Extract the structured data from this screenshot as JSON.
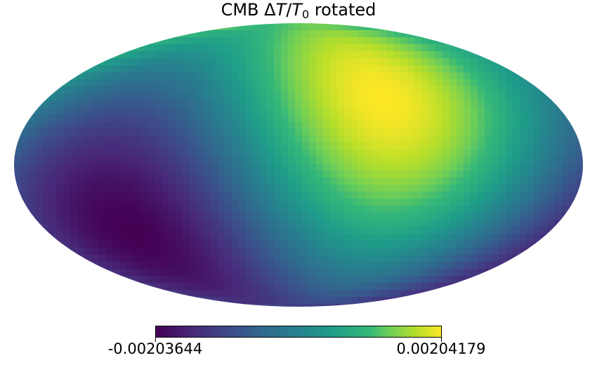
{
  "chart_data": {
    "type": "heatmap",
    "projection": "mollweide",
    "title": {
      "prefix": "CMB ",
      "delta": "Δ",
      "T": "T",
      "slash": "/",
      "T0_base": "T",
      "T0_sub": "0",
      "suffix": " rotated"
    },
    "colormap": "viridis",
    "colorbar": {
      "min": -0.00203644,
      "max": 0.00204179,
      "min_label": "-0.00203644",
      "max_label": "0.00204179",
      "orientation": "horizontal",
      "placement": "bottom"
    },
    "field": {
      "description_pattern": "dipole",
      "cold_pole": {
        "lon_deg": 55,
        "lat_deg": -30,
        "value": -0.00203644
      },
      "hot_pole": {
        "lon_deg": -60,
        "lat_deg": 35,
        "value": 0.00204179
      }
    }
  }
}
